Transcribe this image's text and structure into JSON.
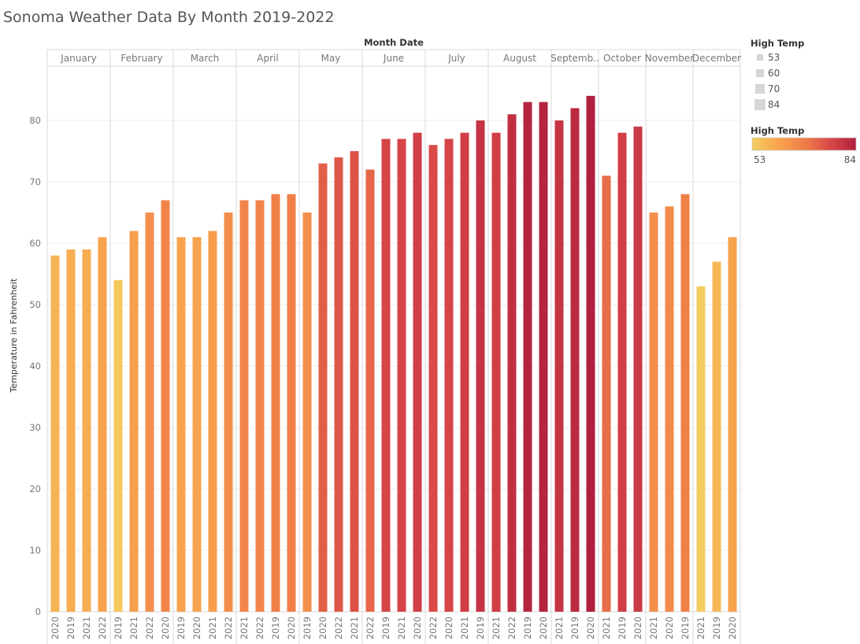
{
  "chart_data": {
    "type": "bar",
    "title": "Sonoma Weather Data By Month 2019-2022",
    "column_header": "Month Date",
    "ylabel": "Temperature in Fahrenheit",
    "ylim": [
      0,
      90
    ],
    "yticks": [
      0,
      10,
      20,
      30,
      40,
      50,
      60,
      70,
      80
    ],
    "grid": true,
    "groups": [
      {
        "month": "January",
        "bars": [
          {
            "year": "2020",
            "value": 58
          },
          {
            "year": "2019",
            "value": 59
          },
          {
            "year": "2021",
            "value": 59
          },
          {
            "year": "2022",
            "value": 61
          }
        ]
      },
      {
        "month": "February",
        "bars": [
          {
            "year": "2019",
            "value": 54
          },
          {
            "year": "2021",
            "value": 62
          },
          {
            "year": "2022",
            "value": 65
          },
          {
            "year": "2020",
            "value": 67
          }
        ]
      },
      {
        "month": "March",
        "bars": [
          {
            "year": "2019",
            "value": 61
          },
          {
            "year": "2020",
            "value": 61
          },
          {
            "year": "2021",
            "value": 62
          },
          {
            "year": "2022",
            "value": 65
          }
        ]
      },
      {
        "month": "April",
        "bars": [
          {
            "year": "2021",
            "value": 67
          },
          {
            "year": "2022",
            "value": 67
          },
          {
            "year": "2019",
            "value": 68
          },
          {
            "year": "2020",
            "value": 68
          }
        ]
      },
      {
        "month": "May",
        "bars": [
          {
            "year": "2019",
            "value": 65
          },
          {
            "year": "2020",
            "value": 73
          },
          {
            "year": "2022",
            "value": 74
          },
          {
            "year": "2021",
            "value": 75
          }
        ]
      },
      {
        "month": "June",
        "bars": [
          {
            "year": "2022",
            "value": 72
          },
          {
            "year": "2019",
            "value": 77
          },
          {
            "year": "2021",
            "value": 77
          },
          {
            "year": "2020",
            "value": 78
          }
        ]
      },
      {
        "month": "July",
        "bars": [
          {
            "year": "2022",
            "value": 76
          },
          {
            "year": "2020",
            "value": 77
          },
          {
            "year": "2021",
            "value": 78
          },
          {
            "year": "2019",
            "value": 80
          }
        ]
      },
      {
        "month": "August",
        "bars": [
          {
            "year": "2021",
            "value": 78
          },
          {
            "year": "2022",
            "value": 81
          },
          {
            "year": "2019",
            "value": 83
          },
          {
            "year": "2020",
            "value": 83
          }
        ]
      },
      {
        "month": "Septemb..",
        "bars": [
          {
            "year": "2021",
            "value": 80
          },
          {
            "year": "2019",
            "value": 82
          },
          {
            "year": "2020",
            "value": 84
          }
        ]
      },
      {
        "month": "October",
        "bars": [
          {
            "year": "2021",
            "value": 71
          },
          {
            "year": "2019",
            "value": 78
          },
          {
            "year": "2020",
            "value": 79
          }
        ]
      },
      {
        "month": "November",
        "bars": [
          {
            "year": "2021",
            "value": 65
          },
          {
            "year": "2020",
            "value": 66
          },
          {
            "year": "2019",
            "value": 68
          }
        ]
      },
      {
        "month": "December",
        "bars": [
          {
            "year": "2021",
            "value": 53
          },
          {
            "year": "2019",
            "value": 57
          },
          {
            "year": "2020",
            "value": 61
          }
        ]
      }
    ],
    "legend_size": {
      "title": "High Temp",
      "items": [
        "53",
        "60",
        "70",
        "84"
      ]
    },
    "legend_color": {
      "title": "High Temp",
      "min_label": "53",
      "max_label": "84",
      "min": 53,
      "max": 84,
      "colors": [
        "#f3cd5f",
        "#f8a44e",
        "#ef7e48",
        "#d94847",
        "#b01f3e"
      ]
    }
  }
}
